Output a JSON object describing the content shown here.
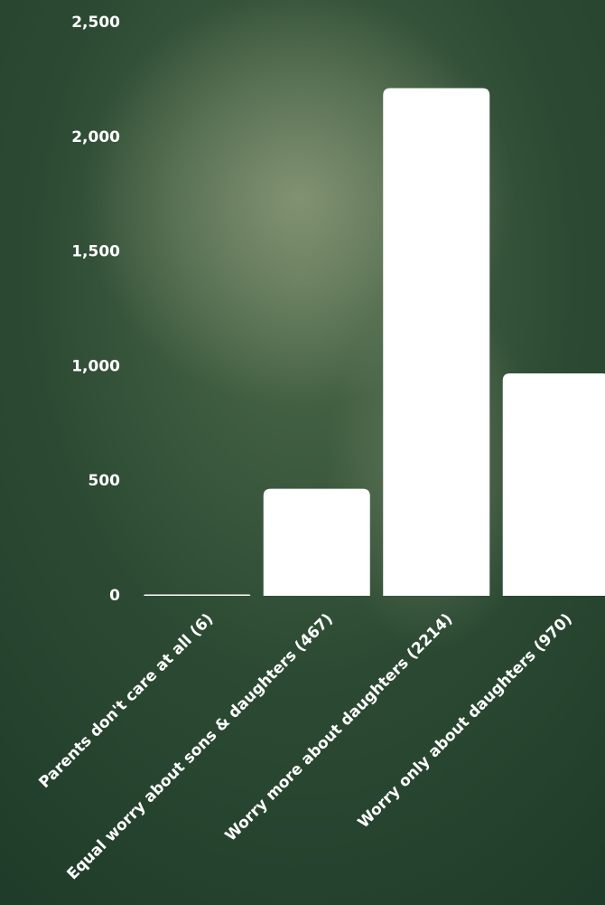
{
  "chart_data": {
    "type": "bar",
    "categories": [
      "Parents don't care at all (6)",
      "Equal worry about sons & daughters (467)",
      "Worry more about daughters (2214)",
      "Worry only about daughters (970)"
    ],
    "values": [
      6,
      467,
      2214,
      970
    ],
    "color": "#ffffff",
    "ylim": [
      0,
      2500
    ],
    "yticks": [
      0,
      500,
      {
        "value": 1000,
        "label": "1,000"
      },
      {
        "value": 1500,
        "label": "1,500"
      },
      {
        "value": 2000,
        "label": "2,000"
      },
      {
        "value": 2500,
        "label": "2,500"
      }
    ],
    "grid": false
  }
}
